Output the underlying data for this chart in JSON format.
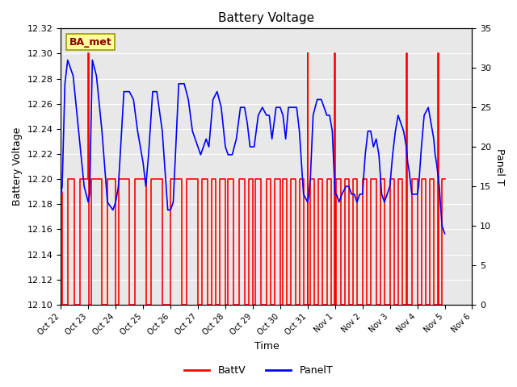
{
  "title": "Battery Voltage",
  "xlabel": "Time",
  "ylabel_left": "Battery Voltage",
  "ylabel_right": "Panel T",
  "ylim_left": [
    12.1,
    12.32
  ],
  "ylim_right": [
    0,
    35
  ],
  "bg_color": "#e8e8e8",
  "fig_color": "#ffffff",
  "grid_color": "#ffffff",
  "batt_color": "#ff0000",
  "panel_color": "#0000ff",
  "legend_label": "BA_met",
  "legend_box_color": "#ffff99",
  "legend_box_edge": "#999900",
  "tick_labels": [
    "Oct 22",
    "Oct 23",
    "Oct 24",
    "Oct 25",
    "Oct 26",
    "Oct 27",
    "Oct 28",
    "Oct 29",
    "Oct 30",
    "Oct 31",
    "Nov 1",
    "Nov 2",
    "Nov 3",
    "Nov 4",
    "Nov 5",
    "Nov 6"
  ],
  "left_yticks": [
    12.1,
    12.12,
    12.14,
    12.16,
    12.18,
    12.2,
    12.22,
    12.24,
    12.26,
    12.28,
    12.3,
    12.32
  ],
  "right_yticks": [
    0,
    5,
    10,
    15,
    20,
    25,
    30,
    35
  ],
  "batt_data": [
    [
      0.0,
      12.19
    ],
    [
      0.05,
      12.19
    ],
    [
      0.05,
      12.1
    ],
    [
      0.25,
      12.1
    ],
    [
      0.25,
      12.2
    ],
    [
      0.5,
      12.2
    ],
    [
      0.5,
      12.1
    ],
    [
      0.7,
      12.1
    ],
    [
      0.7,
      12.2
    ],
    [
      1.0,
      12.2
    ],
    [
      1.0,
      12.3
    ],
    [
      1.02,
      12.3
    ],
    [
      1.02,
      12.1
    ],
    [
      1.1,
      12.1
    ],
    [
      1.1,
      12.2
    ],
    [
      1.5,
      12.2
    ],
    [
      1.5,
      12.1
    ],
    [
      1.7,
      12.1
    ],
    [
      1.7,
      12.2
    ],
    [
      2.0,
      12.2
    ],
    [
      2.0,
      12.1
    ],
    [
      2.1,
      12.1
    ],
    [
      2.1,
      12.2
    ],
    [
      2.5,
      12.2
    ],
    [
      2.5,
      12.1
    ],
    [
      2.7,
      12.1
    ],
    [
      2.7,
      12.2
    ],
    [
      3.1,
      12.2
    ],
    [
      3.1,
      12.1
    ],
    [
      3.3,
      12.1
    ],
    [
      3.3,
      12.2
    ],
    [
      3.7,
      12.2
    ],
    [
      3.7,
      12.1
    ],
    [
      4.0,
      12.1
    ],
    [
      4.0,
      12.2
    ],
    [
      4.4,
      12.2
    ],
    [
      4.4,
      12.1
    ],
    [
      4.6,
      12.1
    ],
    [
      4.6,
      12.2
    ],
    [
      5.0,
      12.2
    ],
    [
      5.0,
      12.1
    ],
    [
      5.15,
      12.1
    ],
    [
      5.15,
      12.2
    ],
    [
      5.35,
      12.2
    ],
    [
      5.35,
      12.1
    ],
    [
      5.5,
      12.1
    ],
    [
      5.5,
      12.2
    ],
    [
      5.65,
      12.2
    ],
    [
      5.65,
      12.1
    ],
    [
      5.8,
      12.1
    ],
    [
      5.8,
      12.2
    ],
    [
      6.0,
      12.2
    ],
    [
      6.0,
      12.1
    ],
    [
      6.1,
      12.1
    ],
    [
      6.1,
      12.2
    ],
    [
      6.3,
      12.2
    ],
    [
      6.3,
      12.1
    ],
    [
      6.5,
      12.1
    ],
    [
      6.5,
      12.2
    ],
    [
      6.7,
      12.2
    ],
    [
      6.7,
      12.1
    ],
    [
      6.85,
      12.1
    ],
    [
      6.85,
      12.2
    ],
    [
      7.0,
      12.2
    ],
    [
      7.0,
      12.1
    ],
    [
      7.1,
      12.1
    ],
    [
      7.1,
      12.2
    ],
    [
      7.3,
      12.2
    ],
    [
      7.3,
      12.1
    ],
    [
      7.5,
      12.1
    ],
    [
      7.5,
      12.2
    ],
    [
      7.65,
      12.2
    ],
    [
      7.65,
      12.1
    ],
    [
      7.8,
      12.1
    ],
    [
      7.8,
      12.2
    ],
    [
      8.0,
      12.2
    ],
    [
      8.0,
      12.1
    ],
    [
      8.1,
      12.1
    ],
    [
      8.1,
      12.2
    ],
    [
      8.25,
      12.2
    ],
    [
      8.25,
      12.1
    ],
    [
      8.4,
      12.1
    ],
    [
      8.4,
      12.2
    ],
    [
      8.55,
      12.2
    ],
    [
      8.55,
      12.1
    ],
    [
      8.7,
      12.1
    ],
    [
      8.7,
      12.2
    ],
    [
      8.85,
      12.2
    ],
    [
      8.85,
      12.1
    ],
    [
      9.0,
      12.1
    ],
    [
      9.0,
      12.3
    ],
    [
      9.02,
      12.3
    ],
    [
      9.02,
      12.1
    ],
    [
      9.1,
      12.1
    ],
    [
      9.1,
      12.2
    ],
    [
      9.25,
      12.2
    ],
    [
      9.25,
      12.1
    ],
    [
      9.4,
      12.1
    ],
    [
      9.4,
      12.2
    ],
    [
      9.55,
      12.2
    ],
    [
      9.55,
      12.1
    ],
    [
      9.7,
      12.1
    ],
    [
      9.7,
      12.2
    ],
    [
      9.85,
      12.2
    ],
    [
      9.85,
      12.1
    ],
    [
      9.98,
      12.1
    ],
    [
      9.98,
      12.3
    ],
    [
      10.0,
      12.3
    ],
    [
      10.0,
      12.1
    ],
    [
      10.05,
      12.1
    ],
    [
      10.05,
      12.2
    ],
    [
      10.2,
      12.2
    ],
    [
      10.2,
      12.1
    ],
    [
      10.35,
      12.1
    ],
    [
      10.35,
      12.2
    ],
    [
      10.5,
      12.2
    ],
    [
      10.5,
      12.1
    ],
    [
      10.65,
      12.1
    ],
    [
      10.65,
      12.2
    ],
    [
      10.8,
      12.2
    ],
    [
      10.8,
      12.1
    ],
    [
      11.0,
      12.1
    ],
    [
      11.0,
      12.2
    ],
    [
      11.15,
      12.2
    ],
    [
      11.15,
      12.1
    ],
    [
      11.3,
      12.1
    ],
    [
      11.3,
      12.2
    ],
    [
      11.5,
      12.2
    ],
    [
      11.5,
      12.1
    ],
    [
      11.65,
      12.1
    ],
    [
      11.65,
      12.2
    ],
    [
      11.8,
      12.2
    ],
    [
      11.8,
      12.1
    ],
    [
      12.0,
      12.1
    ],
    [
      12.0,
      12.2
    ],
    [
      12.15,
      12.2
    ],
    [
      12.15,
      12.1
    ],
    [
      12.3,
      12.1
    ],
    [
      12.3,
      12.2
    ],
    [
      12.45,
      12.2
    ],
    [
      12.45,
      12.1
    ],
    [
      12.6,
      12.1
    ],
    [
      12.6,
      12.3
    ],
    [
      12.62,
      12.3
    ],
    [
      12.62,
      12.1
    ],
    [
      12.8,
      12.1
    ],
    [
      12.8,
      12.2
    ],
    [
      13.0,
      12.2
    ],
    [
      13.0,
      12.1
    ],
    [
      13.15,
      12.1
    ],
    [
      13.15,
      12.2
    ],
    [
      13.3,
      12.2
    ],
    [
      13.3,
      12.1
    ],
    [
      13.45,
      12.1
    ],
    [
      13.45,
      12.2
    ],
    [
      13.6,
      12.2
    ],
    [
      13.6,
      12.1
    ],
    [
      13.75,
      12.1
    ],
    [
      13.75,
      12.3
    ],
    [
      13.77,
      12.3
    ],
    [
      13.77,
      12.1
    ],
    [
      13.9,
      12.1
    ],
    [
      13.9,
      12.2
    ],
    [
      14.0,
      12.2
    ]
  ],
  "panel_data_x": [
    0.0,
    0.05,
    0.15,
    0.25,
    0.45,
    0.65,
    0.85,
    1.0,
    1.05,
    1.15,
    1.3,
    1.5,
    1.7,
    1.9,
    2.0,
    2.1,
    2.3,
    2.5,
    2.65,
    2.8,
    3.0,
    3.1,
    3.2,
    3.35,
    3.5,
    3.7,
    3.9,
    4.0,
    4.1,
    4.3,
    4.5,
    4.65,
    4.8,
    5.0,
    5.1,
    5.2,
    5.3,
    5.4,
    5.55,
    5.7,
    5.85,
    6.0,
    6.1,
    6.25,
    6.4,
    6.55,
    6.7,
    6.8,
    6.9,
    7.05,
    7.2,
    7.35,
    7.5,
    7.6,
    7.7,
    7.85,
    8.0,
    8.1,
    8.2,
    8.3,
    8.45,
    8.6,
    8.7,
    8.85,
    9.0,
    9.05,
    9.1,
    9.2,
    9.35,
    9.5,
    9.6,
    9.7,
    9.8,
    9.9,
    10.0,
    10.05,
    10.15,
    10.25,
    10.4,
    10.5,
    10.6,
    10.7,
    10.8,
    10.9,
    11.0,
    11.1,
    11.2,
    11.3,
    11.4,
    11.5,
    11.6,
    11.7,
    11.8,
    11.9,
    12.0,
    12.1,
    12.2,
    12.3,
    12.4,
    12.5,
    12.6,
    12.65,
    12.7,
    12.8,
    12.9,
    13.0,
    13.05,
    13.15,
    13.25,
    13.4,
    13.5,
    13.6,
    13.65,
    13.7,
    13.8,
    13.9,
    14.0
  ],
  "panel_data_y": [
    14,
    15,
    28,
    31,
    29,
    22,
    15,
    13,
    14,
    31,
    29,
    22,
    13,
    12,
    13,
    15,
    27,
    27,
    26,
    22,
    18,
    15,
    19,
    27,
    27,
    22,
    12,
    12,
    13,
    28,
    28,
    26,
    22,
    20,
    19,
    20,
    21,
    20,
    26,
    27,
    25,
    20,
    19,
    19,
    21,
    25,
    25,
    23,
    20,
    20,
    24,
    25,
    24,
    24,
    21,
    25,
    25,
    24,
    21,
    25,
    25,
    25,
    22,
    14,
    13,
    14,
    16,
    24,
    26,
    26,
    25,
    24,
    24,
    22,
    14,
    14,
    13,
    14,
    15,
    15,
    14,
    14,
    13,
    14,
    14,
    19,
    22,
    22,
    20,
    21,
    19,
    14,
    13,
    14,
    15,
    19,
    22,
    24,
    23,
    22,
    20,
    18,
    17,
    14,
    14,
    14,
    15,
    20,
    24,
    25,
    23,
    21,
    19,
    18,
    15,
    10,
    9
  ]
}
